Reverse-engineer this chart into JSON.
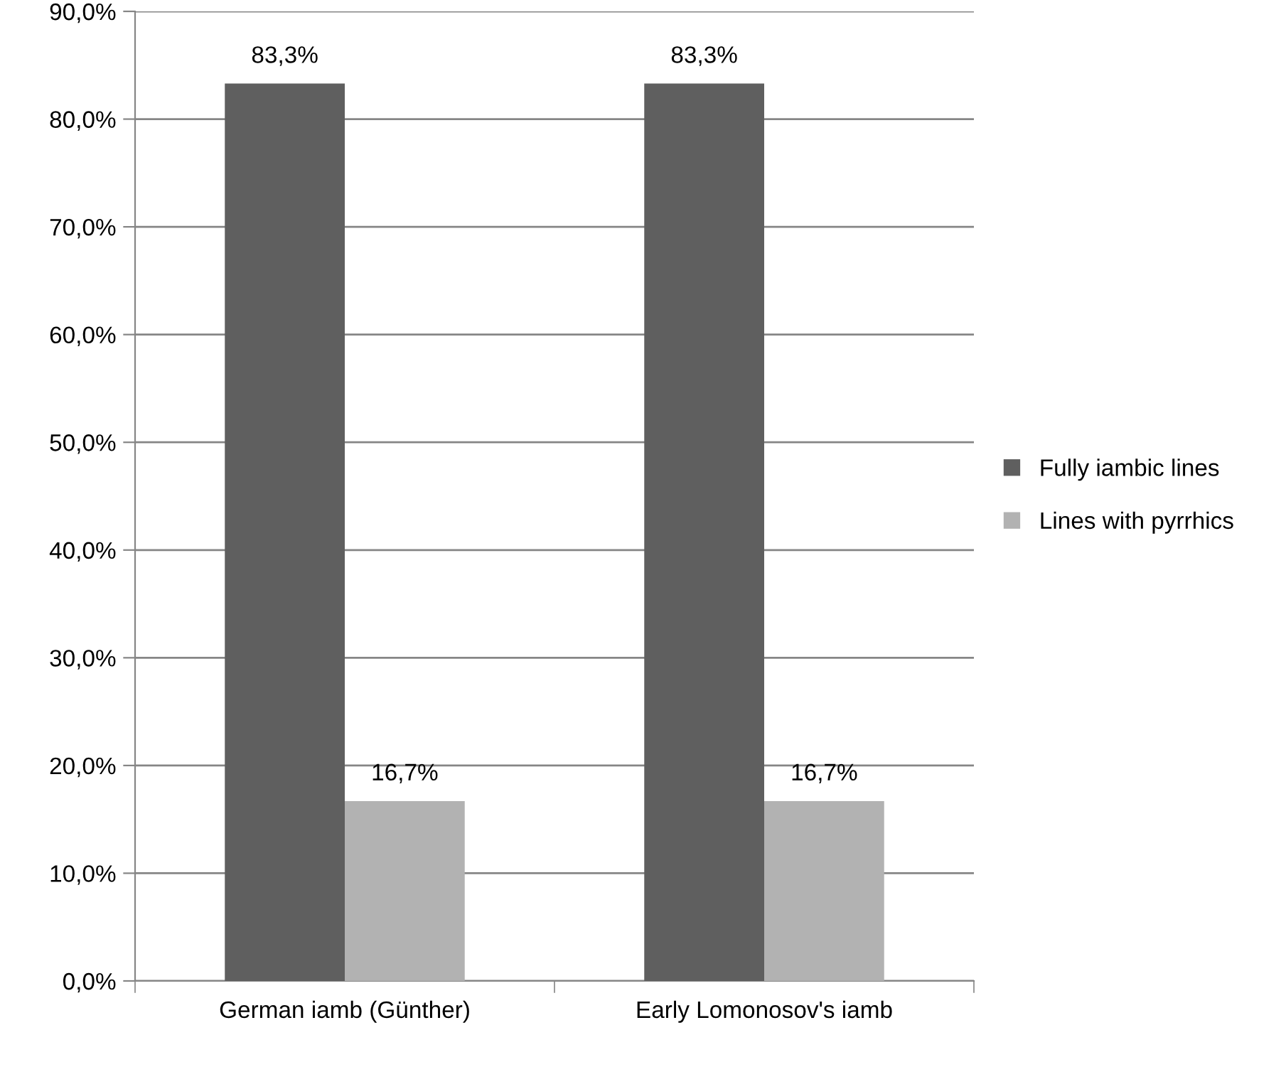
{
  "chart_data": {
    "type": "bar",
    "categories": [
      "German iamb (Günther)",
      "Early Lomonosov's iamb"
    ],
    "series": [
      {
        "name": "Fully iambic lines",
        "color": "#5f5f5f",
        "values": [
          83.3,
          83.3
        ],
        "value_labels": [
          "83,3%",
          "83,3%"
        ]
      },
      {
        "name": "Lines with pyrrhics",
        "color": "#b2b2b2",
        "values": [
          16.7,
          16.7
        ],
        "value_labels": [
          "16,7%",
          "16,7%"
        ]
      }
    ],
    "ylim": [
      0,
      90
    ],
    "yticks": [
      {
        "value": 0,
        "label": "0,0%"
      },
      {
        "value": 10,
        "label": "10,0%"
      },
      {
        "value": 20,
        "label": "20,0%"
      },
      {
        "value": 30,
        "label": "30,0%"
      },
      {
        "value": 40,
        "label": "40,0%"
      },
      {
        "value": 50,
        "label": "50,0%"
      },
      {
        "value": 60,
        "label": "60,0%"
      },
      {
        "value": 70,
        "label": "70,0%"
      },
      {
        "value": 80,
        "label": "80,0%"
      },
      {
        "value": 90,
        "label": "90,0%"
      }
    ],
    "grid": "y",
    "legend": "right"
  }
}
